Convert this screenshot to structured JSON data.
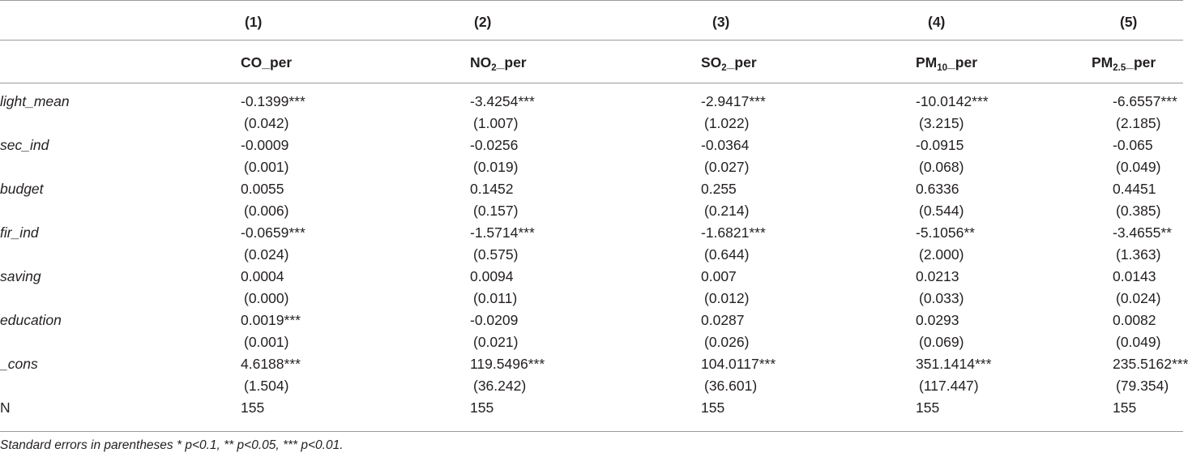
{
  "table": {
    "col_numbers": [
      "(1)",
      "(2)",
      "(3)",
      "(4)",
      "(5)"
    ],
    "col_names": [
      {
        "base": "CO",
        "sub": "",
        "suffix": "_per"
      },
      {
        "base": "NO",
        "sub": "2",
        "suffix": "_per"
      },
      {
        "base": "SO",
        "sub": "2",
        "suffix": "_per"
      },
      {
        "base": "PM",
        "sub": "10",
        "suffix": "_per"
      },
      {
        "base": "PM",
        "sub": "2.5",
        "suffix": "_per"
      }
    ],
    "rows": [
      {
        "label": "light_mean",
        "coef": [
          "-0.1399***",
          "-3.4254***",
          "-2.9417***",
          "-10.0142***",
          "-6.6557***"
        ],
        "se": [
          "(0.042)",
          "(1.007)",
          "(1.022)",
          "(3.215)",
          "(2.185)"
        ]
      },
      {
        "label": "sec_ind",
        "coef": [
          "-0.0009",
          "-0.0256",
          "-0.0364",
          "-0.0915",
          "-0.065"
        ],
        "se": [
          "(0.001)",
          "(0.019)",
          "(0.027)",
          "(0.068)",
          "(0.049)"
        ]
      },
      {
        "label": "budget",
        "coef": [
          "0.0055",
          "0.1452",
          "0.255",
          "0.6336",
          "0.4451"
        ],
        "se": [
          "(0.006)",
          "(0.157)",
          "(0.214)",
          "(0.544)",
          "(0.385)"
        ]
      },
      {
        "label": "fir_ind",
        "coef": [
          "-0.0659***",
          "-1.5714***",
          "-1.6821***",
          "-5.1056**",
          "-3.4655**"
        ],
        "se": [
          "(0.024)",
          "(0.575)",
          "(0.644)",
          "(2.000)",
          "(1.363)"
        ]
      },
      {
        "label": "saving",
        "coef": [
          "0.0004",
          "0.0094",
          "0.007",
          "0.0213",
          "0.0143"
        ],
        "se": [
          "(0.000)",
          "(0.011)",
          "(0.012)",
          "(0.033)",
          "(0.024)"
        ]
      },
      {
        "label": "education",
        "coef": [
          "0.0019***",
          "-0.0209",
          "0.0287",
          "0.0293",
          "0.0082"
        ],
        "se": [
          "(0.001)",
          "(0.021)",
          "(0.026)",
          "(0.069)",
          "(0.049)"
        ]
      },
      {
        "label": "_cons",
        "coef": [
          "4.6188***",
          "119.5496***",
          "104.0117***",
          "351.1414***",
          "235.5162***"
        ],
        "se": [
          "(1.504)",
          "(36.242)",
          "(36.601)",
          "(117.447)",
          "(79.354)"
        ]
      }
    ],
    "n_row": {
      "label": "N",
      "values": [
        "155",
        "155",
        "155",
        "155",
        "155"
      ]
    }
  },
  "note": "Standard errors in parentheses * p<0.1, ** p<0.05, *** p<0.01."
}
